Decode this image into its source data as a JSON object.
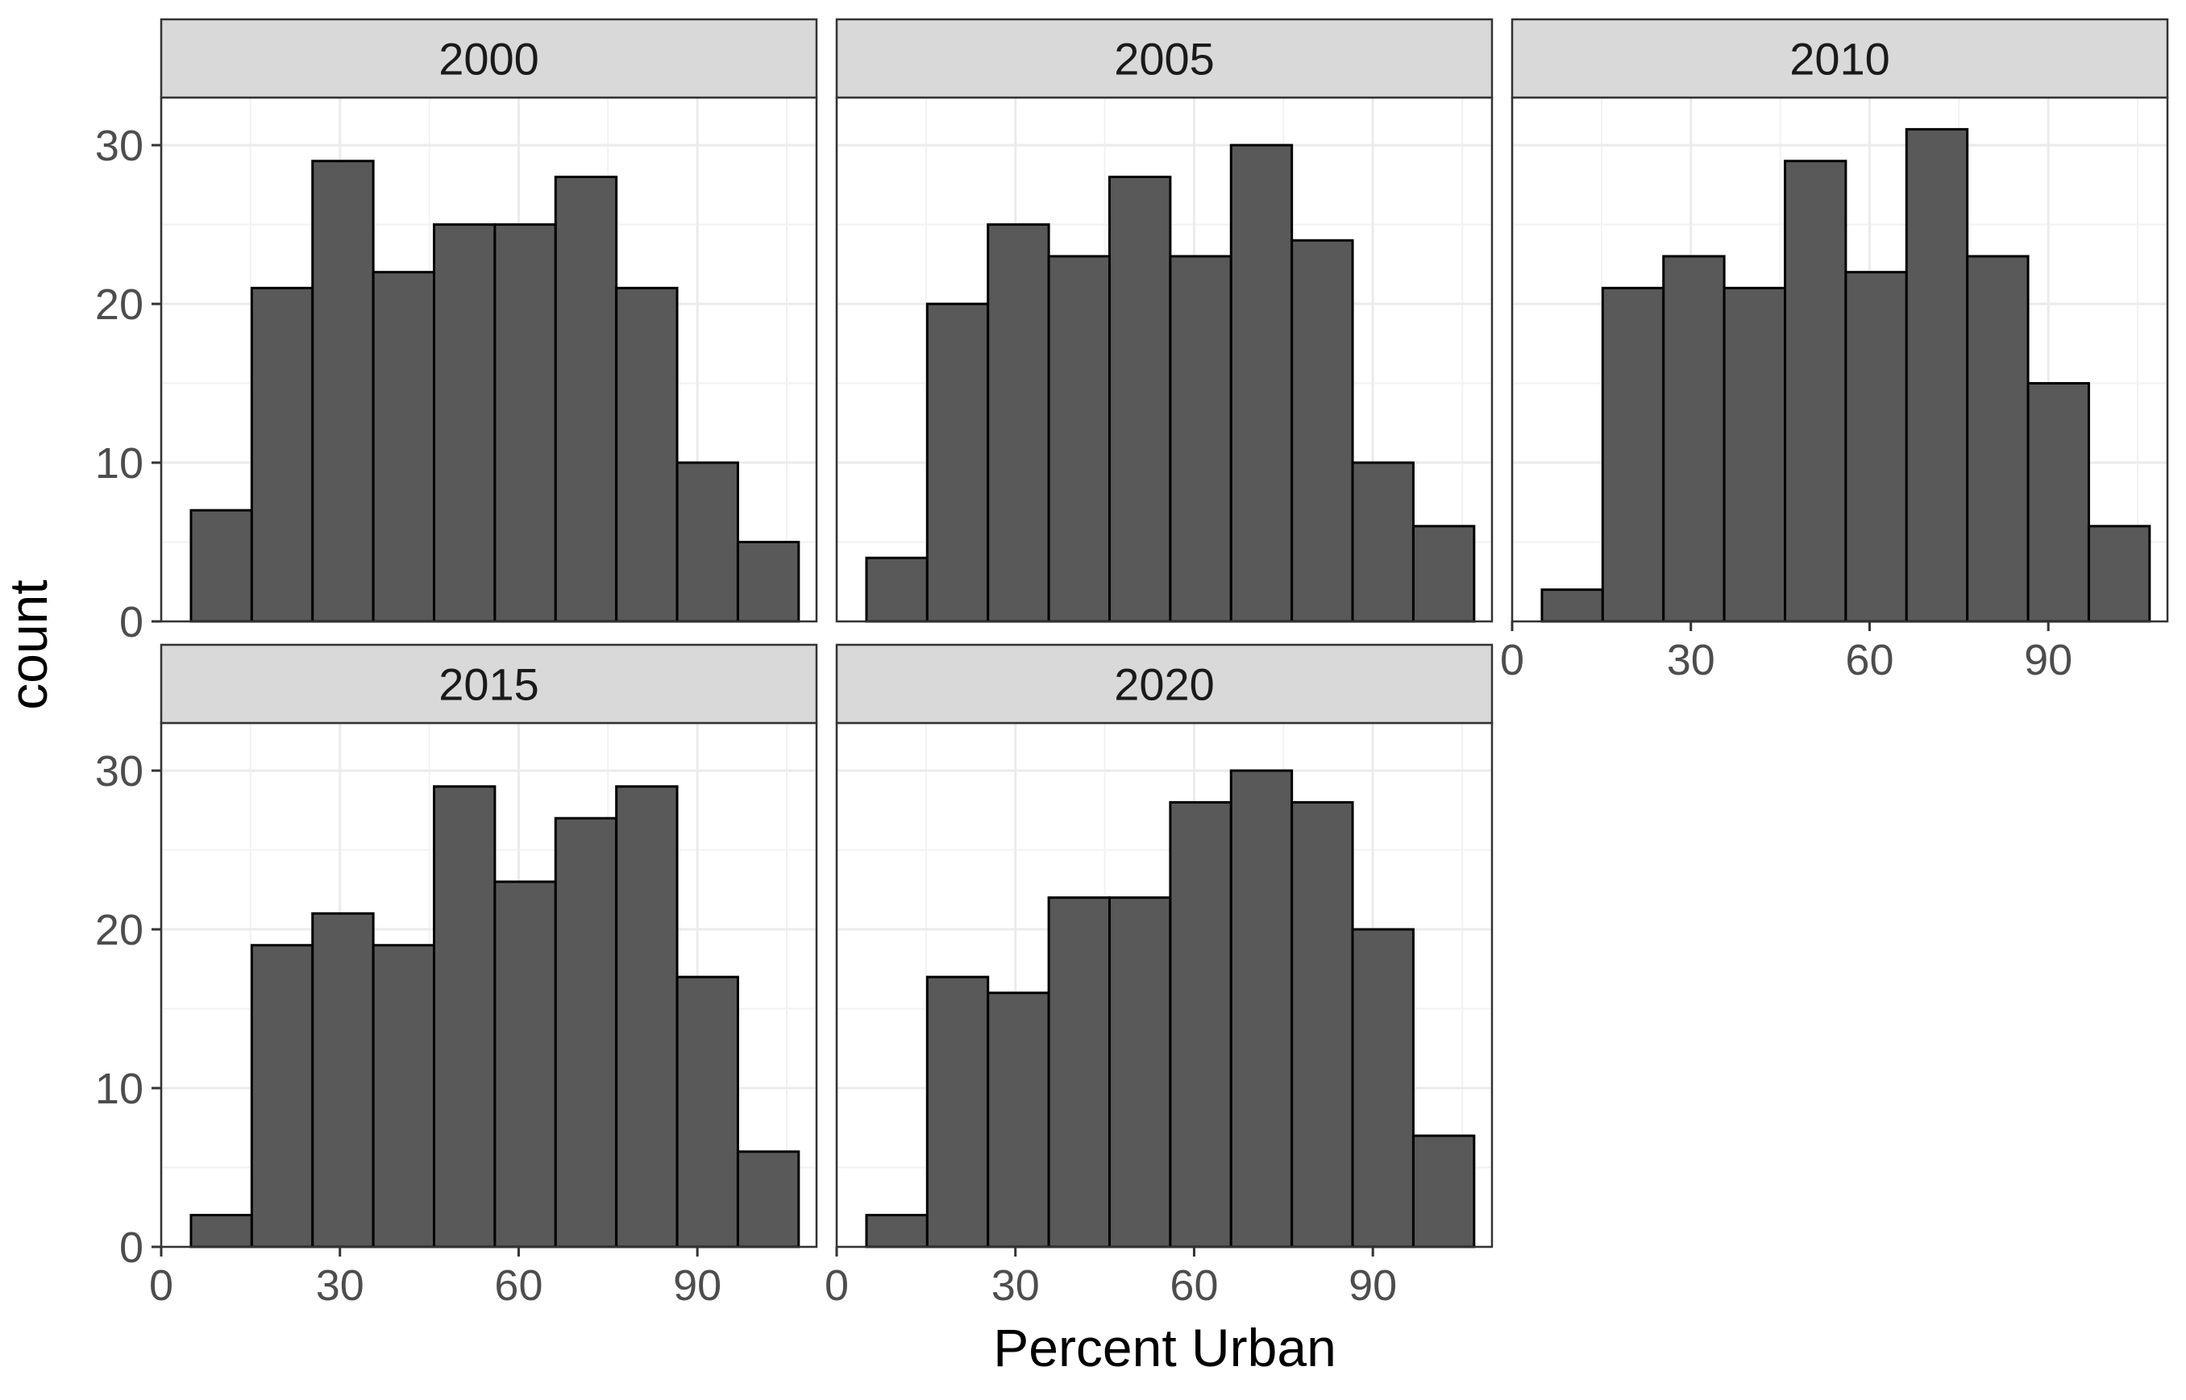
{
  "chart_data": {
    "type": "bar",
    "subtype": "faceted-histogram",
    "title": "",
    "xlabel": "Percent Urban",
    "ylabel": "count",
    "xlim": [
      0,
      110
    ],
    "ylim": [
      0,
      33
    ],
    "x_ticks": [
      0,
      30,
      60,
      90
    ],
    "y_ticks": [
      0,
      10,
      20,
      30
    ],
    "bin_width": 10.2,
    "bin_start": 5,
    "grid": true,
    "colors": {
      "bar_fill": "#595959",
      "bar_stroke": "#000000",
      "strip_fill": "#d9d9d9",
      "grid": "#ebebeb"
    },
    "facets": [
      {
        "label": "2000",
        "values": [
          7,
          21,
          29,
          22,
          25,
          25,
          28,
          21,
          10,
          5
        ]
      },
      {
        "label": "2005",
        "values": [
          4,
          20,
          25,
          23,
          28,
          23,
          30,
          24,
          10,
          6
        ]
      },
      {
        "label": "2010",
        "values": [
          2,
          21,
          23,
          21,
          29,
          22,
          31,
          23,
          15,
          6
        ]
      },
      {
        "label": "2015",
        "values": [
          2,
          19,
          21,
          19,
          29,
          23,
          27,
          29,
          17,
          6
        ]
      },
      {
        "label": "2020",
        "values": [
          2,
          17,
          16,
          22,
          22,
          28,
          30,
          28,
          20,
          7
        ]
      }
    ]
  }
}
